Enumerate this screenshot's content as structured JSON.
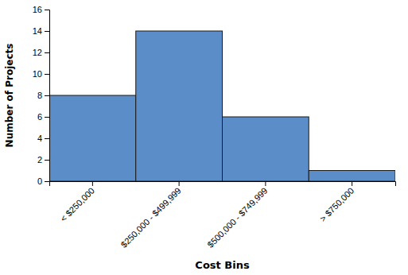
{
  "chart_data": {
    "type": "bar",
    "categories": [
      "< $250,000",
      "$250,000 - $499,999",
      "$500,000 - $749,999",
      "> $750,000"
    ],
    "values": [
      8,
      14,
      6,
      1
    ],
    "color": "#5B8DC8",
    "xlabel": "Cost Bins",
    "ylabel": "Number of Projects",
    "ylim": [
      0,
      16
    ],
    "yticks": [
      0,
      2,
      4,
      6,
      8,
      10,
      12,
      14,
      16
    ],
    "grid": false
  }
}
